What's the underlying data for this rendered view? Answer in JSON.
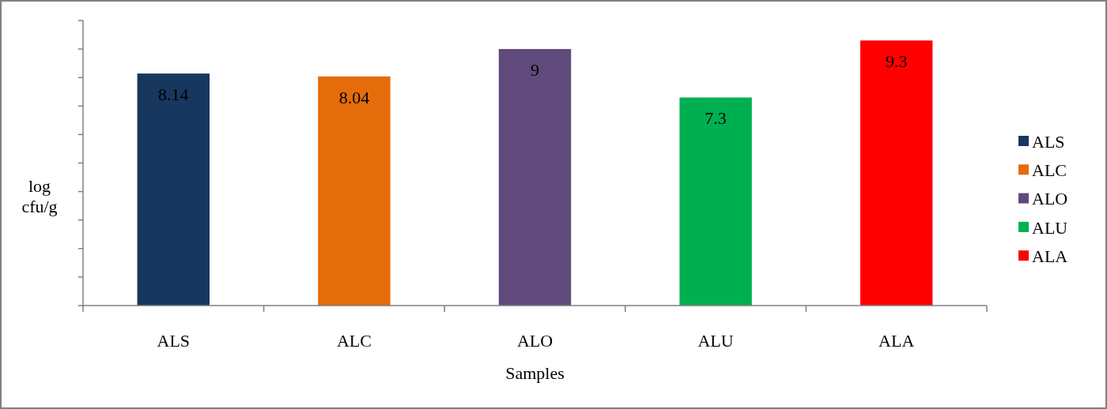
{
  "chart_data": {
    "type": "bar",
    "xlabel": "Samples",
    "ylabel": "log cfu/g",
    "categories": [
      "ALS",
      "ALC",
      "ALO",
      "ALU",
      "ALA"
    ],
    "series": [
      {
        "name": "ALS",
        "color": "#17375e",
        "values": [
          8.14,
          null,
          null,
          null,
          null
        ]
      },
      {
        "name": "ALC",
        "color": "#e46c0a",
        "values": [
          null,
          8.04,
          null,
          null,
          null
        ]
      },
      {
        "name": "ALO",
        "color": "#604a7b",
        "values": [
          null,
          null,
          9,
          null,
          null
        ]
      },
      {
        "name": "ALU",
        "color": "#00b050",
        "values": [
          null,
          null,
          null,
          7.3,
          null
        ]
      },
      {
        "name": "ALA",
        "color": "#ff0000",
        "values": [
          null,
          null,
          null,
          null,
          9.3
        ]
      }
    ],
    "stacked": true,
    "ylim": [
      0,
      10
    ],
    "yticks": [
      {
        "value": 0,
        "label": null
      },
      {
        "value": 1,
        "label": null
      },
      {
        "value": 2,
        "label": null
      },
      {
        "value": 3,
        "label": null
      },
      {
        "value": 4,
        "label": null
      },
      {
        "value": 5,
        "label": null
      },
      {
        "value": 6,
        "label": null
      },
      {
        "value": 7,
        "label": null
      },
      {
        "value": 8,
        "label": null
      },
      {
        "value": 9,
        "label": null
      },
      {
        "value": 10,
        "label": null
      }
    ],
    "tick_labels": "x",
    "data_labels": true,
    "legend": "right",
    "grid": false
  }
}
